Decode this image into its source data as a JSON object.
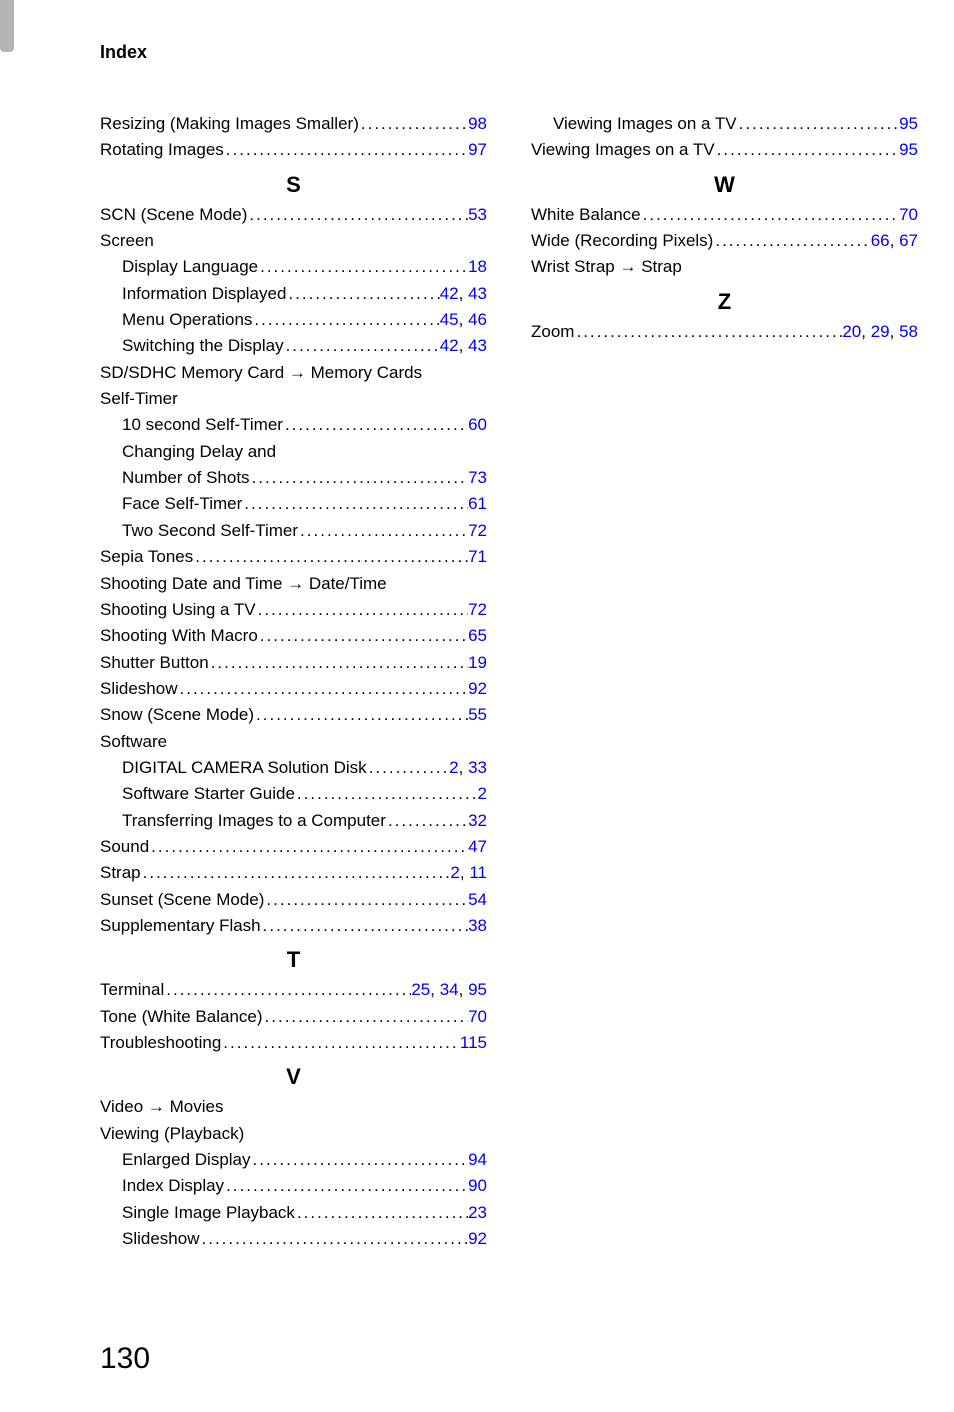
{
  "header": "Index",
  "page_number": "130",
  "leader_fill": "............................................................................................",
  "arrow": "→",
  "colors": {
    "text": "#000000",
    "link": "#0000ee",
    "tab": "#b5b5b5",
    "background": "#ffffff"
  },
  "left_blocks": [
    {
      "letter": null,
      "entries": [
        {
          "label": "Resizing (Making Images Smaller)",
          "pages": [
            "98"
          ],
          "sub": false
        },
        {
          "label": "Rotating Images",
          "pages": [
            "97"
          ],
          "sub": false
        }
      ]
    },
    {
      "letter": "S",
      "entries": [
        {
          "label": "SCN (Scene Mode)",
          "pages": [
            "53"
          ],
          "sub": false
        },
        {
          "label": "Screen",
          "pages": [],
          "sub": false
        },
        {
          "label": "Display Language",
          "pages": [
            "18"
          ],
          "sub": true
        },
        {
          "label": "Information Displayed",
          "pages": [
            "42",
            "43"
          ],
          "sub": true
        },
        {
          "label": "Menu Operations",
          "pages": [
            "45",
            "46"
          ],
          "sub": true
        },
        {
          "label": "Switching the Display",
          "pages": [
            "42",
            "43"
          ],
          "sub": true
        },
        {
          "label": "SD/SDHC Memory Card → Memory Cards",
          "pages": [],
          "sub": false
        },
        {
          "label": "Self-Timer",
          "pages": [],
          "sub": false
        },
        {
          "label": "10 second Self-Timer",
          "pages": [
            "60"
          ],
          "sub": true
        },
        {
          "label": "Changing Delay and",
          "pages": [],
          "sub": true
        },
        {
          "label": "Number of Shots",
          "pages": [
            "73"
          ],
          "sub": true
        },
        {
          "label": "Face Self-Timer",
          "pages": [
            "61"
          ],
          "sub": true
        },
        {
          "label": "Two Second Self-Timer",
          "pages": [
            "72"
          ],
          "sub": true
        },
        {
          "label": "Sepia Tones",
          "pages": [
            "71"
          ],
          "sub": false
        },
        {
          "label": "Shooting Date and Time → Date/Time",
          "pages": [],
          "sub": false
        },
        {
          "label": "Shooting Using a TV",
          "pages": [
            "72"
          ],
          "sub": false
        },
        {
          "label": "Shooting With Macro",
          "pages": [
            "65"
          ],
          "sub": false
        },
        {
          "label": "Shutter Button",
          "pages": [
            "19"
          ],
          "sub": false
        },
        {
          "label": "Slideshow",
          "pages": [
            "92"
          ],
          "sub": false
        },
        {
          "label": "Snow (Scene Mode)",
          "pages": [
            "55"
          ],
          "sub": false
        },
        {
          "label": "Software",
          "pages": [],
          "sub": false
        },
        {
          "label": "DIGITAL CAMERA Solution Disk",
          "pages": [
            "2",
            "33"
          ],
          "sub": true
        },
        {
          "label": "Software Starter Guide",
          "pages": [
            "2"
          ],
          "sub": true
        },
        {
          "label": "Transferring Images to a Computer",
          "pages": [
            "32"
          ],
          "sub": true
        },
        {
          "label": "Sound",
          "pages": [
            "47"
          ],
          "sub": false
        },
        {
          "label": "Strap",
          "pages": [
            "2",
            "11"
          ],
          "sub": false
        },
        {
          "label": "Sunset (Scene Mode)",
          "pages": [
            "54"
          ],
          "sub": false
        },
        {
          "label": "Supplementary Flash",
          "pages": [
            "38"
          ],
          "sub": false
        }
      ]
    },
    {
      "letter": "T",
      "entries": [
        {
          "label": "Terminal",
          "pages": [
            "25",
            "34",
            "95"
          ],
          "sub": false
        },
        {
          "label": "Tone (White Balance)",
          "pages": [
            "70"
          ],
          "sub": false
        },
        {
          "label": "Troubleshooting",
          "pages": [
            "115"
          ],
          "sub": false
        }
      ]
    },
    {
      "letter": "V",
      "entries": [
        {
          "label": "Video → Movies",
          "pages": [],
          "sub": false
        },
        {
          "label": "Viewing (Playback)",
          "pages": [],
          "sub": false
        },
        {
          "label": "Enlarged Display",
          "pages": [
            "94"
          ],
          "sub": true
        },
        {
          "label": "Index Display",
          "pages": [
            "90"
          ],
          "sub": true
        },
        {
          "label": "Single Image Playback",
          "pages": [
            "23"
          ],
          "sub": true
        },
        {
          "label": "Slideshow",
          "pages": [
            "92"
          ],
          "sub": true
        }
      ]
    }
  ],
  "right_blocks": [
    {
      "letter": null,
      "entries": [
        {
          "label": "Viewing Images on a TV",
          "pages": [
            "95"
          ],
          "sub": true
        },
        {
          "label": "Viewing Images on a TV",
          "pages": [
            "95"
          ],
          "sub": false
        }
      ]
    },
    {
      "letter": "W",
      "entries": [
        {
          "label": "White Balance",
          "pages": [
            "70"
          ],
          "sub": false
        },
        {
          "label": "Wide (Recording Pixels)",
          "pages": [
            "66",
            "67"
          ],
          "sub": false
        },
        {
          "label": "Wrist Strap → Strap",
          "pages": [],
          "sub": false
        }
      ]
    },
    {
      "letter": "Z",
      "entries": [
        {
          "label": "Zoom",
          "pages": [
            "20",
            "29",
            "58"
          ],
          "sub": false
        }
      ]
    }
  ]
}
